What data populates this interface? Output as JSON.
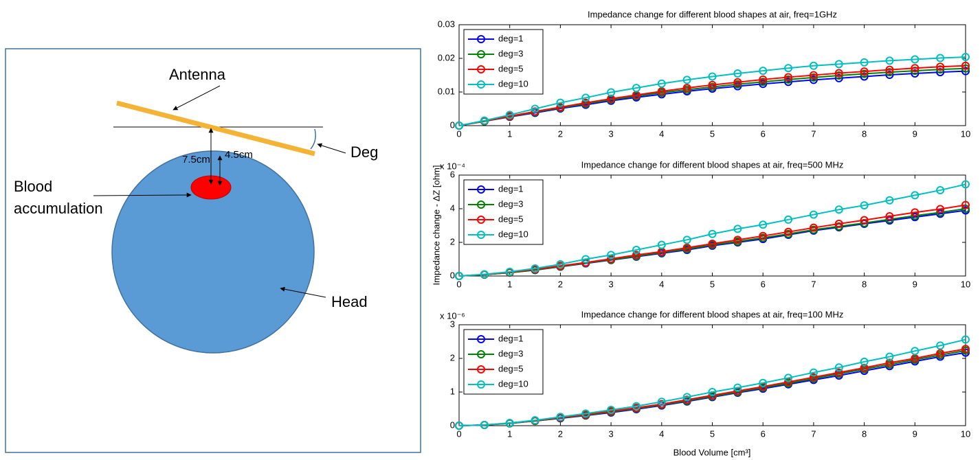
{
  "diagram": {
    "antenna": "Antenna",
    "deg": "Deg",
    "dist_outer": "7.5cm",
    "dist_inner": "4.5cm",
    "blood": [
      "Blood",
      "accumulation"
    ],
    "head": "Head"
  },
  "shared_labels": {
    "y": "Impedance change - ΔZ [ohm]",
    "x": "Blood Volume [cm³]"
  },
  "chart_data": [
    {
      "type": "line",
      "title": "Impedance change for different blood shapes at air, freq=1GHz",
      "legend": "upper left",
      "marker": "circle",
      "x": [
        0,
        0.5,
        1,
        1.5,
        2,
        2.5,
        3,
        3.5,
        4,
        4.5,
        5,
        5.5,
        6,
        6.5,
        7,
        7.5,
        8,
        8.5,
        9,
        9.5,
        10
      ],
      "xlim": [
        0,
        10
      ],
      "xticks": [
        0,
        1,
        2,
        3,
        4,
        5,
        6,
        7,
        8,
        9,
        10
      ],
      "ylim": [
        0,
        0.03
      ],
      "yticks": [
        0,
        0.01,
        0.02,
        0.03
      ],
      "series": [
        {
          "name": "deg=1",
          "color": "#0000ff",
          "values": [
            0,
            0.0013,
            0.0026,
            0.0038,
            0.0051,
            0.0062,
            0.0074,
            0.0084,
            0.0093,
            0.0102,
            0.011,
            0.0117,
            0.0124,
            0.013,
            0.0136,
            0.0141,
            0.0146,
            0.0151,
            0.0155,
            0.0159,
            0.0162
          ]
        },
        {
          "name": "deg=3",
          "color": "#008000",
          "values": [
            0,
            0.0013,
            0.0027,
            0.004,
            0.0053,
            0.0065,
            0.0077,
            0.0088,
            0.0098,
            0.0107,
            0.0115,
            0.0123,
            0.013,
            0.0137,
            0.0143,
            0.0149,
            0.0154,
            0.0159,
            0.0163,
            0.0167,
            0.017
          ]
        },
        {
          "name": "deg=5",
          "color": "#ff0000",
          "values": [
            0,
            0.0014,
            0.0028,
            0.0042,
            0.0055,
            0.0068,
            0.008,
            0.0091,
            0.0102,
            0.0112,
            0.0121,
            0.0129,
            0.0137,
            0.0144,
            0.015,
            0.0156,
            0.0161,
            0.0166,
            0.0171,
            0.0175,
            0.0178
          ]
        },
        {
          "name": "deg=10",
          "color": "#00bfbf",
          "values": [
            0,
            0.0015,
            0.0032,
            0.005,
            0.0068,
            0.0083,
            0.0099,
            0.0112,
            0.0125,
            0.0136,
            0.0146,
            0.0155,
            0.0163,
            0.0171,
            0.0178,
            0.0183,
            0.0188,
            0.0193,
            0.0197,
            0.0201,
            0.0204
          ]
        }
      ]
    },
    {
      "type": "line",
      "title": "Impedance change for different blood shapes at air, freq=500 MHz",
      "legend": "upper left",
      "marker": "circle",
      "y_exponent": "x 10⁻⁴",
      "x": [
        0,
        0.5,
        1,
        1.5,
        2,
        2.5,
        3,
        3.5,
        4,
        4.5,
        5,
        5.5,
        6,
        6.5,
        7,
        7.5,
        8,
        8.5,
        9,
        9.5,
        10
      ],
      "xlim": [
        0,
        10
      ],
      "xticks": [
        0,
        1,
        2,
        3,
        4,
        5,
        6,
        7,
        8,
        9,
        10
      ],
      "ylim": [
        0,
        6
      ],
      "yticks": [
        0,
        2,
        4,
        6
      ],
      "series": [
        {
          "name": "deg=1",
          "color": "#0000ff",
          "values": [
            0,
            0.08,
            0.2,
            0.35,
            0.55,
            0.75,
            0.95,
            1.15,
            1.35,
            1.55,
            1.8,
            2.0,
            2.2,
            2.45,
            2.7,
            2.9,
            3.1,
            3.3,
            3.5,
            3.7,
            3.9
          ]
        },
        {
          "name": "deg=3",
          "color": "#008000",
          "values": [
            0,
            0.08,
            0.2,
            0.36,
            0.56,
            0.77,
            0.97,
            1.18,
            1.4,
            1.6,
            1.85,
            2.05,
            2.27,
            2.5,
            2.75,
            2.95,
            3.15,
            3.37,
            3.58,
            3.78,
            4.0
          ]
        },
        {
          "name": "deg=5",
          "color": "#ff0000",
          "values": [
            0,
            0.09,
            0.22,
            0.4,
            0.6,
            0.8,
            1.02,
            1.25,
            1.45,
            1.68,
            1.92,
            2.15,
            2.38,
            2.62,
            2.87,
            3.1,
            3.32,
            3.55,
            3.78,
            3.98,
            4.22
          ]
        },
        {
          "name": "deg=10",
          "color": "#00bfbf",
          "values": [
            0,
            0.1,
            0.25,
            0.45,
            0.7,
            1.0,
            1.25,
            1.55,
            1.85,
            2.15,
            2.5,
            2.8,
            3.05,
            3.35,
            3.65,
            3.95,
            4.2,
            4.5,
            4.8,
            5.1,
            5.45
          ]
        }
      ]
    },
    {
      "type": "line",
      "title": "Impedance change for different blood shapes at air, freq=100 MHz",
      "legend": "upper left",
      "marker": "circle",
      "y_exponent": "x 10⁻⁶",
      "x": [
        0,
        0.5,
        1,
        1.5,
        2,
        2.5,
        3,
        3.5,
        4,
        4.5,
        5,
        5.5,
        6,
        6.5,
        7,
        7.5,
        8,
        8.5,
        9,
        9.5,
        10
      ],
      "xlim": [
        0,
        10
      ],
      "xticks": [
        0,
        1,
        2,
        3,
        4,
        5,
        6,
        7,
        8,
        9,
        10
      ],
      "ylim": [
        0,
        3
      ],
      "yticks": [
        0,
        1,
        2,
        3
      ],
      "series": [
        {
          "name": "deg=1",
          "color": "#0000ff",
          "values": [
            0,
            0.02,
            0.07,
            0.14,
            0.22,
            0.3,
            0.39,
            0.49,
            0.6,
            0.72,
            0.85,
            0.98,
            1.1,
            1.23,
            1.36,
            1.49,
            1.63,
            1.77,
            1.91,
            2.05,
            2.17
          ]
        },
        {
          "name": "deg=3",
          "color": "#008000",
          "values": [
            0,
            0.02,
            0.07,
            0.14,
            0.23,
            0.31,
            0.41,
            0.51,
            0.62,
            0.74,
            0.87,
            1.0,
            1.13,
            1.26,
            1.4,
            1.54,
            1.68,
            1.82,
            1.96,
            2.1,
            2.23
          ]
        },
        {
          "name": "deg=5",
          "color": "#ff0000",
          "values": [
            0,
            0.02,
            0.08,
            0.15,
            0.24,
            0.33,
            0.43,
            0.53,
            0.64,
            0.77,
            0.9,
            1.03,
            1.16,
            1.3,
            1.44,
            1.58,
            1.72,
            1.87,
            2.0,
            2.15,
            2.28
          ]
        },
        {
          "name": "deg=10",
          "color": "#00bfbf",
          "values": [
            0,
            0.02,
            0.08,
            0.16,
            0.26,
            0.36,
            0.47,
            0.58,
            0.71,
            0.85,
            1.0,
            1.13,
            1.27,
            1.42,
            1.58,
            1.73,
            1.9,
            2.05,
            2.22,
            2.38,
            2.56
          ]
        }
      ]
    }
  ]
}
